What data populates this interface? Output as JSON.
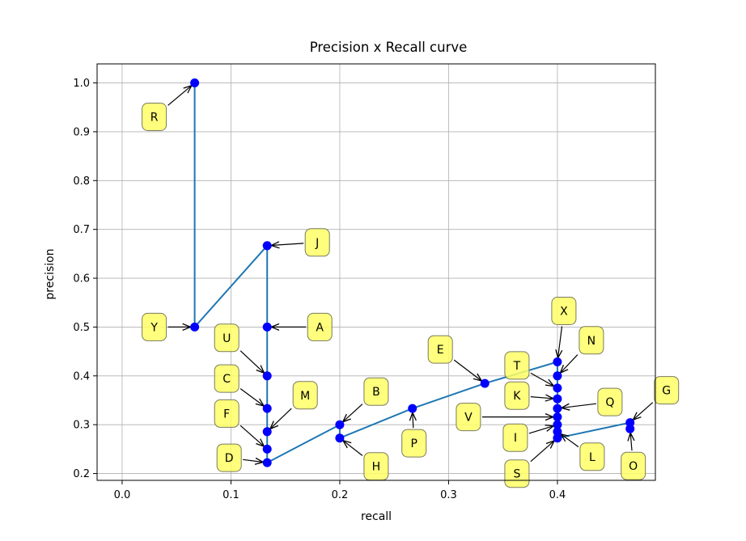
{
  "chart_data": {
    "type": "line",
    "title": "Precision x Recall curve",
    "xlabel": "recall",
    "ylabel": "precision",
    "xlim": [
      -0.023,
      0.49
    ],
    "ylim": [
      0.186,
      1.039
    ],
    "xticks": [
      0.0,
      0.1,
      0.2,
      0.3,
      0.4
    ],
    "yticks": [
      0.2,
      0.3,
      0.4,
      0.5,
      0.6,
      0.7,
      0.8,
      0.9,
      1.0
    ],
    "grid": true,
    "line_color": "#1f77b4",
    "marker_color": "#0000ff",
    "annotation_box_color": "#ffff66",
    "points": [
      {
        "label": "R",
        "x": 0.0667,
        "y": 1.0
      },
      {
        "label": "Y",
        "x": 0.0667,
        "y": 0.5
      },
      {
        "label": "J",
        "x": 0.1333,
        "y": 0.6667
      },
      {
        "label": "A",
        "x": 0.1333,
        "y": 0.5
      },
      {
        "label": "U",
        "x": 0.1333,
        "y": 0.4
      },
      {
        "label": "C",
        "x": 0.1333,
        "y": 0.3333
      },
      {
        "label": "M",
        "x": 0.1333,
        "y": 0.2857
      },
      {
        "label": "F",
        "x": 0.1333,
        "y": 0.25
      },
      {
        "label": "D",
        "x": 0.1333,
        "y": 0.2222
      },
      {
        "label": "B",
        "x": 0.2,
        "y": 0.3
      },
      {
        "label": "H",
        "x": 0.2,
        "y": 0.2727
      },
      {
        "label": "P",
        "x": 0.2667,
        "y": 0.3333
      },
      {
        "label": "E",
        "x": 0.3333,
        "y": 0.3846
      },
      {
        "label": "X",
        "x": 0.4,
        "y": 0.4286
      },
      {
        "label": "N",
        "x": 0.4,
        "y": 0.4
      },
      {
        "label": "T",
        "x": 0.4,
        "y": 0.375
      },
      {
        "label": "K",
        "x": 0.4,
        "y": 0.3529
      },
      {
        "label": "Q",
        "x": 0.4,
        "y": 0.3333
      },
      {
        "label": "V",
        "x": 0.4,
        "y": 0.3158
      },
      {
        "label": "I",
        "x": 0.4,
        "y": 0.3
      },
      {
        "label": "L",
        "x": 0.4,
        "y": 0.2857
      },
      {
        "label": "S",
        "x": 0.4,
        "y": 0.2727
      },
      {
        "label": "G",
        "x": 0.4667,
        "y": 0.3043
      },
      {
        "label": "O",
        "x": 0.4667,
        "y": 0.2917
      }
    ],
    "line_path": [
      [
        0.0667,
        1.0
      ],
      [
        0.0667,
        0.5
      ],
      [
        0.1333,
        0.6667
      ],
      [
        0.1333,
        0.5
      ],
      [
        0.1333,
        0.4
      ],
      [
        0.1333,
        0.3333
      ],
      [
        0.1333,
        0.2857
      ],
      [
        0.1333,
        0.25
      ],
      [
        0.1333,
        0.2222
      ],
      [
        0.2,
        0.3
      ],
      [
        0.2,
        0.2727
      ],
      [
        0.2667,
        0.3333
      ],
      [
        0.3333,
        0.3846
      ],
      [
        0.4,
        0.4286
      ],
      [
        0.4,
        0.4
      ],
      [
        0.4,
        0.375
      ],
      [
        0.4,
        0.3529
      ],
      [
        0.4,
        0.3333
      ],
      [
        0.4,
        0.3158
      ],
      [
        0.4,
        0.3
      ],
      [
        0.4,
        0.2857
      ],
      [
        0.4,
        0.2727
      ],
      [
        0.4667,
        0.3043
      ],
      [
        0.4667,
        0.2917
      ]
    ]
  }
}
